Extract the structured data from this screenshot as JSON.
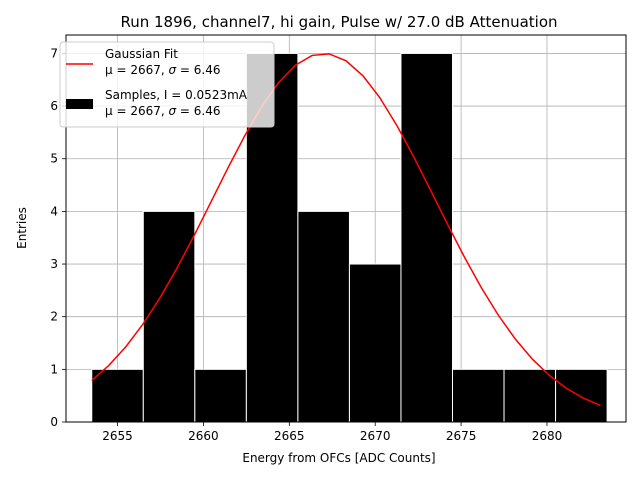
{
  "chart_data": {
    "type": "bar",
    "title": "Run 1896, channel7, hi gain, Pulse w/ 27.0 dB Attenuation",
    "xlabel": "Energy from OFCs [ADC Counts]",
    "ylabel": "Entries",
    "xlim": [
      2652.0,
      2684.6
    ],
    "ylim": [
      0,
      7.35
    ],
    "grid": true,
    "legend_placement": "top-left",
    "x_ticks": [
      2655,
      2660,
      2665,
      2670,
      2675,
      2680
    ],
    "x_tick_labels": [
      "2655",
      "2660",
      "2665",
      "2670",
      "2675",
      "2680"
    ],
    "y_ticks": [
      0,
      1,
      2,
      3,
      4,
      5,
      6,
      7
    ],
    "y_tick_labels": [
      "0",
      "1",
      "2",
      "3",
      "4",
      "5",
      "6",
      "7"
    ],
    "histogram": {
      "bin_edges": [
        2653.5,
        2656.5,
        2659.5,
        2662.5,
        2665.5,
        2668.5,
        2671.5,
        2674.5,
        2677.5,
        2680.5,
        2683.5
      ],
      "counts": [
        1,
        4,
        1,
        7,
        4,
        3,
        7,
        1,
        1,
        1
      ],
      "color": "#000000",
      "edge_color": "#ffffff"
    },
    "fit": {
      "mu": 2667,
      "sigma": 6.46,
      "amplitude": 7.0,
      "x_range": [
        2653.5,
        2683.1
      ],
      "color": "#ff0000"
    },
    "legend": [
      {
        "kind": "line",
        "color": "#ff0000",
        "line1": "Gaussian Fit",
        "line2_prefix": "μ = 2667, ",
        "line2_sigma": "σ",
        "line2_suffix": " = 6.46"
      },
      {
        "kind": "patch",
        "color": "#000000",
        "line1": "Samples, I = 0.0523mA",
        "line2_prefix": "μ = 2667, ",
        "line2_sigma": "σ",
        "line2_suffix": " = 6.46"
      }
    ]
  }
}
